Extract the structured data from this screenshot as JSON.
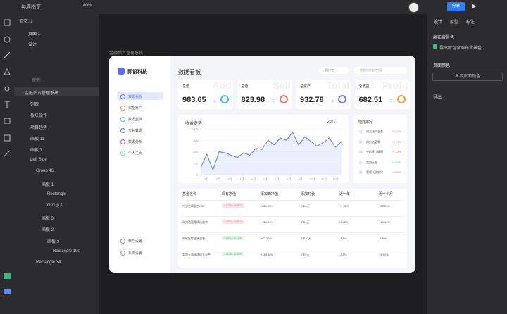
{
  "topbar": {
    "file": "每周指享",
    "zoom": "80%",
    "share": "分享"
  },
  "left_panel": {
    "pages": "页数: 2",
    "page": "页面 1",
    "design": "设计",
    "search": "搜索...",
    "layers": [
      "金融后台管理系统",
      "列表",
      "板块操作",
      "项目趋势",
      "画板 11",
      "画板 7",
      "Left Side",
      "Group 46",
      "画板 1",
      "Rectangle",
      "Group 1",
      "画板 3",
      "画板 2",
      "画板 3",
      "Rectangle 190",
      "Rectangle 34"
    ]
  },
  "right_panel": {
    "tabs": [
      "设计",
      "原型",
      "标注"
    ],
    "canvas_bg": "画布背景色",
    "export_bg": "导出时包含画布背景色",
    "page_color": "页面颜色",
    "show_page_color": "显示页面颜色",
    "export": "导出"
  },
  "frame_label": "金融后台管理系统",
  "dashboard": {
    "brand": "即设科技",
    "title": "数据看板",
    "user": "用户名",
    "search": "搜索你想要的内容",
    "menu": [
      "数据看板",
      "资金账户",
      "数据监测",
      "交易数据",
      "数据分析",
      "个人主页"
    ],
    "menu_bottom": [
      "帐号设置",
      "系统设置"
    ],
    "cards": [
      {
        "label": "总值",
        "value": "983.65",
        "unit": "元",
        "mark": "Add"
      },
      {
        "label": "总值",
        "value": "823.98",
        "unit": "元",
        "mark": "Sell"
      },
      {
        "label": "总资产",
        "value": "932.78",
        "unit": "元",
        "mark": "Total"
      },
      {
        "label": "总收益",
        "value": "682.51",
        "unit": "元",
        "mark": "Profit"
      }
    ],
    "chart": {
      "type": "line",
      "title": "收益走势",
      "year": "2021",
      "color": "#5b7cf5",
      "categories": [
        "1月",
        "2月",
        "3月",
        "4月",
        "5月",
        "6月",
        "7月",
        "8月",
        "9月",
        "10月",
        "11月",
        "12月"
      ],
      "values": [
        60,
        180,
        40,
        200,
        190,
        170,
        150,
        190,
        170,
        230,
        220,
        300,
        260,
        320,
        300,
        370,
        260,
        330,
        290,
        250,
        280,
        320,
        240,
        290
      ],
      "ylim": [
        0,
        400
      ],
      "yticks": [
        0,
        100,
        200,
        300,
        400
      ]
    },
    "rank": {
      "title": "理财排行",
      "items": [
        {
          "n": "1",
          "name": "兴全合润混合",
          "pct": "+6.77%"
        },
        {
          "n": "2",
          "name": "易方达蓝筹",
          "pct": "+7.73%"
        },
        {
          "n": "3",
          "name": "中欧医疗健康",
          "pct": "+7.12%"
        },
        {
          "n": "4",
          "name": "富国天惠",
          "pct": "-6.97%"
        },
        {
          "n": "5",
          "name": "景顺长城新兴",
          "pct": "+6.51%"
        }
      ]
    },
    "table": {
      "header": [
        "基金名称",
        "现有净值",
        "添加到净值",
        "添加时长",
        "近一年",
        "近一个月"
      ],
      "rows": [
        [
          "兴全合润混合LOF",
          "1.0725 / +0.82%",
          "+221.99%",
          "2年8天",
          "+1.05%",
          "+20.20%"
        ],
        [
          "易方达蓝筹精选混合",
          "1.4310 / +0.55%",
          "+124.33%",
          "1年6天",
          "-0.42%",
          "+19.34%"
        ],
        [
          "中欧医疗健康混合A",
          "2.3071 / -0.12%",
          "+92.30%",
          "3年20天",
          "-3.5%",
          "-4.9%"
        ],
        [
          "富国天惠精选成长混合",
          "3.0128 / -0.31%",
          "+219.45%",
          "2年9天",
          "-1.1%",
          "+4.91%"
        ]
      ]
    }
  }
}
